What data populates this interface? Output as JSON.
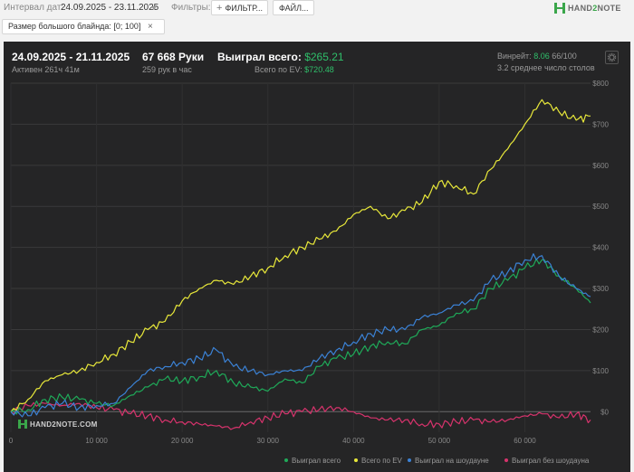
{
  "toolbar": {
    "date_label": "Интервал дат:",
    "date_value": "24.09.2025 - 23.11.2025",
    "filters_label": "Фильтры:",
    "filter_button": "ФИЛЬТР...",
    "file_button": "ФАЙЛ...",
    "logo_pre": "HAND",
    "logo_two": "2",
    "logo_post": "NOTE"
  },
  "chip": {
    "label": "Размер большого блайнда: [0; 100]",
    "close": "×"
  },
  "stats": {
    "period": "24.09.2025 - 21.11.2025",
    "active": "Активен 261ч 41м",
    "hands": "67 668 Руки",
    "rate": "259 рук в час",
    "won_label": "Выиграл всего:",
    "won_value": "$265.21",
    "ev_label": "Всего по EV:",
    "ev_value": "$720.48",
    "winrate_label": "Винрейт:",
    "winrate_value": "8.06",
    "winrate_suffix": "66/100",
    "tables": "3.2 среднее число столов"
  },
  "watermark": "HAND2NOTE.COM",
  "colors": {
    "total": "#1faa59",
    "ev": "#e8e83a",
    "showdown": "#3b82d6",
    "nonshowdown": "#d6336c"
  },
  "chart_data": {
    "type": "line",
    "xlabel": "",
    "ylabel": "",
    "xlim": [
      0,
      67668
    ],
    "ylim": [
      -50,
      800
    ],
    "x_ticks": [
      "0",
      "10 000",
      "20 000",
      "30 000",
      "40 000",
      "50 000",
      "60 000"
    ],
    "y_ticks": [
      "$800",
      "$700",
      "$600",
      "$500",
      "$400",
      "$300",
      "$200",
      "$100",
      "$0"
    ],
    "grid": true,
    "legend_position": "bottom-right",
    "series": [
      {
        "name": "Выиграл всего",
        "key": "total",
        "x": [
          0,
          2000,
          4000,
          6000,
          8000,
          10000,
          12000,
          14000,
          16000,
          18000,
          20000,
          22000,
          24000,
          26000,
          28000,
          30000,
          32000,
          34000,
          36000,
          38000,
          40000,
          42000,
          44000,
          46000,
          48000,
          50000,
          52000,
          54000,
          56000,
          58000,
          60000,
          62000,
          64000,
          66000,
          67668
        ],
        "y": [
          0,
          5,
          30,
          35,
          30,
          20,
          15,
          40,
          60,
          80,
          75,
          85,
          100,
          70,
          60,
          50,
          80,
          70,
          110,
          130,
          140,
          160,
          170,
          165,
          200,
          210,
          240,
          250,
          300,
          320,
          350,
          370,
          330,
          300,
          265
        ]
      },
      {
        "name": "Всего по EV",
        "key": "ev",
        "x": [
          0,
          2000,
          4000,
          6000,
          8000,
          10000,
          12000,
          14000,
          16000,
          18000,
          20000,
          22000,
          24000,
          26000,
          28000,
          30000,
          32000,
          34000,
          36000,
          38000,
          40000,
          42000,
          44000,
          46000,
          48000,
          50000,
          52000,
          54000,
          56000,
          58000,
          60000,
          62000,
          64000,
          66000,
          67668
        ],
        "y": [
          0,
          30,
          75,
          90,
          100,
          120,
          140,
          170,
          200,
          220,
          270,
          300,
          320,
          310,
          330,
          350,
          380,
          400,
          420,
          440,
          480,
          500,
          470,
          490,
          510,
          560,
          550,
          530,
          590,
          640,
          700,
          760,
          730,
          710,
          720
        ]
      },
      {
        "name": "Выиграл на шоудауне",
        "key": "showdown",
        "x": [
          0,
          2000,
          4000,
          6000,
          8000,
          10000,
          12000,
          14000,
          16000,
          18000,
          20000,
          22000,
          24000,
          26000,
          28000,
          30000,
          32000,
          34000,
          36000,
          38000,
          40000,
          42000,
          44000,
          46000,
          48000,
          50000,
          52000,
          54000,
          56000,
          58000,
          60000,
          62000,
          64000,
          66000,
          67668
        ],
        "y": [
          0,
          -10,
          10,
          20,
          10,
          15,
          20,
          60,
          100,
          110,
          120,
          130,
          150,
          110,
          100,
          90,
          100,
          100,
          130,
          150,
          170,
          190,
          200,
          200,
          230,
          240,
          260,
          270,
          320,
          340,
          370,
          380,
          330,
          300,
          280
        ]
      },
      {
        "name": "Выиграл без шоудауна",
        "key": "nonshowdown",
        "x": [
          0,
          2000,
          4000,
          6000,
          8000,
          10000,
          12000,
          14000,
          16000,
          18000,
          20000,
          22000,
          24000,
          26000,
          28000,
          30000,
          32000,
          34000,
          36000,
          38000,
          40000,
          42000,
          44000,
          46000,
          48000,
          50000,
          52000,
          54000,
          56000,
          58000,
          60000,
          62000,
          64000,
          66000,
          67668
        ],
        "y": [
          0,
          15,
          20,
          15,
          20,
          10,
          5,
          -5,
          -10,
          -20,
          -25,
          -30,
          -35,
          -40,
          -25,
          -15,
          -5,
          0,
          5,
          10,
          0,
          -15,
          -20,
          -20,
          -30,
          -30,
          -25,
          -20,
          -25,
          -20,
          -10,
          -5,
          -15,
          -5,
          -20
        ]
      }
    ]
  }
}
